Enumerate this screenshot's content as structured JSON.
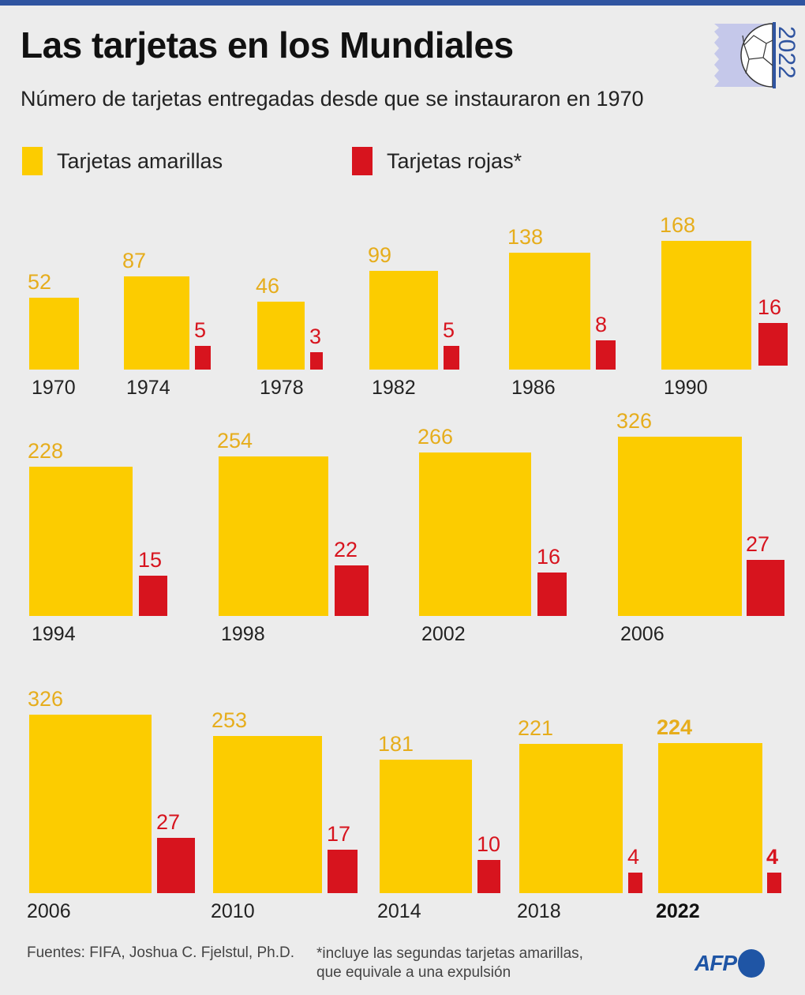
{
  "header": {
    "title": "Las tarjetas en los Mundiales",
    "subtitle": "Número de tarjetas entregadas desde que se instauraron en 1970",
    "logo_text": "2022"
  },
  "colors": {
    "yellow": "#fccc00",
    "red": "#d7141e",
    "yellow_text": "#e6ad1c",
    "red_text": "#d7141e",
    "brand_blue": "#1f55a5"
  },
  "chart_data": {
    "type": "bar",
    "title": "Las tarjetas en los Mundiales",
    "legend": [
      {
        "name": "Tarjetas amarillas",
        "color": "#fccc00"
      },
      {
        "name": "Tarjetas rojas*",
        "color": "#d7141e"
      }
    ],
    "legend_placement": "top-left",
    "encoding": "area-proportional bars",
    "categories": [
      "1970",
      "1974",
      "1978",
      "1982",
      "1986",
      "1990",
      "1994",
      "1998",
      "2002",
      "2006",
      "2006",
      "2010",
      "2014",
      "2018",
      "2022"
    ],
    "series": [
      {
        "name": "Tarjetas amarillas",
        "values": [
          52,
          87,
          46,
          99,
          138,
          168,
          228,
          254,
          266,
          326,
          326,
          253,
          181,
          221,
          224
        ]
      },
      {
        "name": "Tarjetas rojas*",
        "values": [
          0,
          5,
          3,
          5,
          8,
          16,
          15,
          22,
          16,
          27,
          27,
          17,
          10,
          4,
          4
        ]
      }
    ],
    "highlight": "2022"
  },
  "footer": {
    "sources": "Fuentes: FIFA, Joshua C. Fjelstul, Ph.D.",
    "note_line1": "*incluye las segundas tarjetas amarillas,",
    "note_line2": "que equivale a una expulsión",
    "brand": "AFP"
  }
}
